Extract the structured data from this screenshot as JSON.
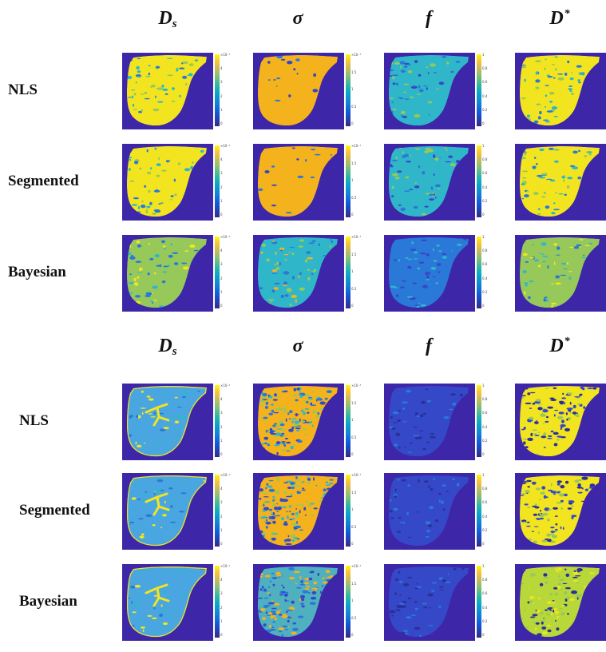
{
  "figure": {
    "column_titles": [
      {
        "base": "D",
        "sub": "s",
        "sup": ""
      },
      {
        "base": "σ",
        "sub": "",
        "sup": ""
      },
      {
        "base": "f",
        "sub": "",
        "sup": ""
      },
      {
        "base": "D",
        "sub": "",
        "sup": "*"
      }
    ],
    "row_labels": [
      "NLS",
      "Segmented",
      "Bayesian"
    ],
    "blocks": [
      {
        "name": "block-a",
        "cbar_ticks": [
          [
            "×10⁻³",
            "4",
            "3",
            "2",
            "1",
            "0"
          ],
          [
            "×10⁻³",
            "1.5",
            "1",
            "0.5",
            "0"
          ],
          [
            "1",
            "0.8",
            "0.6",
            "0.4",
            "0.2",
            "0"
          ],
          [
            "4",
            "3",
            "2",
            "1",
            "0"
          ]
        ],
        "panels": [
          [
            "D_s-high-yellow",
            "sigma-uniform-orange",
            "f-mid-cyan",
            "D*-high-yellow"
          ],
          [
            "D_s-high-yellow",
            "sigma-uniform-orange",
            "f-mid-cyan",
            "D*-high-yellow"
          ],
          [
            "D_s-green-mixed",
            "sigma-cyan-mixed",
            "f-mid-blue",
            "D*-green-mixed"
          ]
        ]
      },
      {
        "name": "block-b",
        "cbar_ticks": [
          [
            "×10⁻³",
            "4",
            "3",
            "2",
            "1",
            "0"
          ],
          [
            "×10⁻³",
            "1.5",
            "1",
            "0.5",
            "0"
          ],
          [
            "1",
            "0.8",
            "0.6",
            "0.4",
            "0.2",
            "0"
          ],
          [
            "0.1",
            "0.08",
            "0.06",
            "0.04",
            "0.02",
            "0"
          ]
        ],
        "panels": [
          [
            "D_s-cyan-vessels",
            "sigma-orange-noisy",
            "f-low-blue",
            "D*-yellow-noisy"
          ],
          [
            "D_s-cyan-vessels",
            "sigma-orange-noisy",
            "f-low-blue",
            "D*-yellow-noisy"
          ],
          [
            "D_s-cyan-vessels",
            "sigma-cyan-noisy",
            "f-low-blue",
            "D*-yellow-green"
          ]
        ]
      }
    ]
  },
  "palette": {
    "background": "#3d26a8",
    "yellow": "#f2e51f",
    "orange": "#f4b21c",
    "green": "#96c85a",
    "cyan": "#2fb7c9",
    "blue": "#2a78d8",
    "deepblue": "#3548c8",
    "navy": "#2b2f9a"
  }
}
